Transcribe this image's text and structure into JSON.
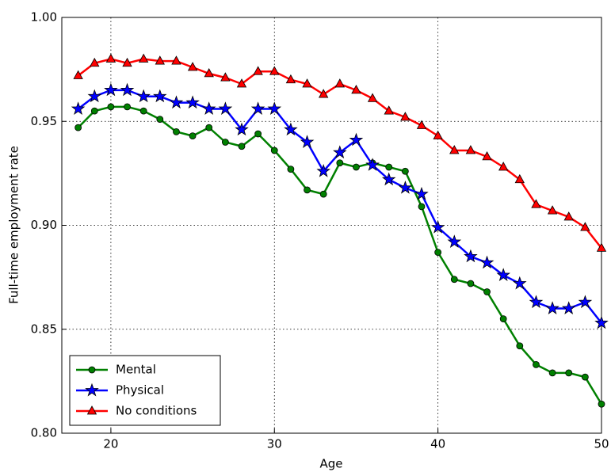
{
  "chart_data": {
    "type": "line",
    "xlabel": "Age",
    "ylabel": "Full-time employment rate",
    "x": [
      18,
      19,
      20,
      21,
      22,
      23,
      24,
      25,
      26,
      27,
      28,
      29,
      30,
      31,
      32,
      33,
      34,
      35,
      36,
      37,
      38,
      39,
      40,
      41,
      42,
      43,
      44,
      45,
      46,
      47,
      48,
      49,
      50
    ],
    "series": [
      {
        "name": "Mental",
        "color": "#008000",
        "marker": "circle",
        "values": [
          0.947,
          0.955,
          0.957,
          0.957,
          0.955,
          0.951,
          0.945,
          0.943,
          0.947,
          0.94,
          0.938,
          0.944,
          0.936,
          0.927,
          0.917,
          0.915,
          0.93,
          0.928,
          0.93,
          0.928,
          0.926,
          0.909,
          0.887,
          0.874,
          0.872,
          0.868,
          0.855,
          0.842,
          0.833,
          0.829,
          0.829,
          0.827,
          0.814
        ]
      },
      {
        "name": "Physical",
        "color": "#0000ff",
        "marker": "star",
        "values": [
          0.956,
          0.962,
          0.965,
          0.965,
          0.962,
          0.962,
          0.959,
          0.959,
          0.956,
          0.956,
          0.946,
          0.956,
          0.956,
          0.946,
          0.94,
          0.926,
          0.935,
          0.941,
          0.929,
          0.922,
          0.918,
          0.915,
          0.899,
          0.892,
          0.885,
          0.882,
          0.876,
          0.872,
          0.863,
          0.86,
          0.86,
          0.863,
          0.853
        ]
      },
      {
        "name": "No conditions",
        "color": "#ff0000",
        "marker": "triangle",
        "values": [
          0.972,
          0.978,
          0.98,
          0.978,
          0.98,
          0.979,
          0.979,
          0.976,
          0.973,
          0.971,
          0.968,
          0.974,
          0.974,
          0.97,
          0.968,
          0.963,
          0.968,
          0.965,
          0.961,
          0.955,
          0.952,
          0.948,
          0.943,
          0.936,
          0.936,
          0.933,
          0.928,
          0.922,
          0.91,
          0.907,
          0.904,
          0.899,
          0.889
        ]
      }
    ],
    "xlim": [
      17,
      50
    ],
    "xticks": [
      20,
      30,
      40,
      50
    ],
    "ylim": [
      0.8,
      1.0
    ],
    "yticks": [
      {
        "value": 0.8,
        "label": "0.80"
      },
      0.85,
      {
        "value": 0.9,
        "label": "0.90"
      },
      0.95,
      {
        "value": 1.0,
        "label": "1.00"
      }
    ],
    "grid": true,
    "legend": "lower left"
  }
}
